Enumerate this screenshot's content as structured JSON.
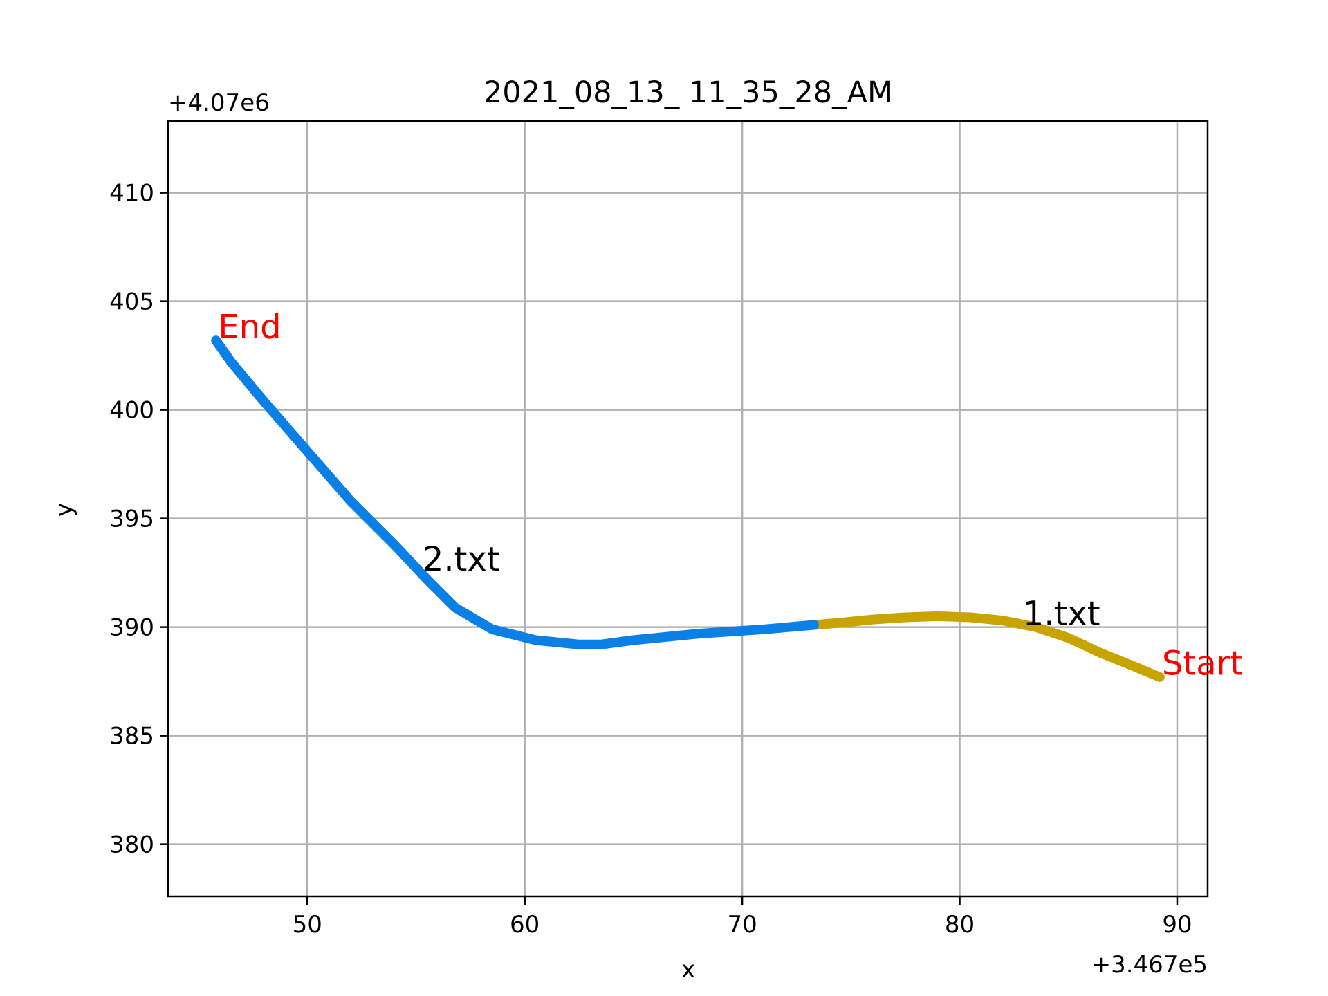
{
  "chart_data": {
    "type": "line",
    "title": "2021_08_13_ 11_35_28_AM",
    "xlabel": "x",
    "ylabel": "y",
    "x_offset_label": "+3.467e5",
    "y_offset_label": "+4.07e6",
    "xlim": [
      43.6,
      91.4
    ],
    "ylim": [
      377.6,
      413.3
    ],
    "xticks": [
      50,
      60,
      70,
      80,
      90
    ],
    "xtick_labels": [
      "50",
      "60",
      "70",
      "80",
      "90"
    ],
    "yticks": [
      380,
      385,
      390,
      395,
      400,
      405,
      410
    ],
    "ytick_labels": [
      "380",
      "385",
      "390",
      "395",
      "400",
      "405",
      "410"
    ],
    "grid": true,
    "series": [
      {
        "name": "1.txt",
        "color": "#c8a400",
        "points": [
          [
            89.2,
            387.7
          ],
          [
            88.0,
            388.2
          ],
          [
            86.5,
            388.8
          ],
          [
            85.0,
            389.5
          ],
          [
            83.5,
            390.0
          ],
          [
            82.0,
            390.3
          ],
          [
            80.5,
            390.45
          ],
          [
            79.0,
            390.5
          ],
          [
            77.5,
            390.45
          ],
          [
            76.0,
            390.35
          ],
          [
            74.5,
            390.2
          ],
          [
            73.3,
            390.1
          ]
        ]
      },
      {
        "name": "2.txt",
        "color": "#0a7fe6",
        "points": [
          [
            73.3,
            390.1
          ],
          [
            71.0,
            389.9
          ],
          [
            68.0,
            389.7
          ],
          [
            65.0,
            389.4
          ],
          [
            63.5,
            389.2
          ],
          [
            62.5,
            389.2
          ],
          [
            60.5,
            389.4
          ],
          [
            58.5,
            389.9
          ],
          [
            56.8,
            390.9
          ],
          [
            55.5,
            392.2
          ],
          [
            54.0,
            393.8
          ],
          [
            52.0,
            395.8
          ],
          [
            50.0,
            398.1
          ],
          [
            48.0,
            400.4
          ],
          [
            46.5,
            402.2
          ],
          [
            45.8,
            403.2
          ]
        ]
      }
    ],
    "annotations": [
      {
        "text": "Start",
        "x": 89.3,
        "y": 387.8,
        "color": "#ff0000"
      },
      {
        "text": "End",
        "x": 45.9,
        "y": 403.3,
        "color": "#ff0000"
      },
      {
        "text": "1.txt",
        "x": 82.9,
        "y": 390.1,
        "color": "#000000"
      },
      {
        "text": "2.txt",
        "x": 55.3,
        "y": 392.6,
        "color": "#000000"
      }
    ]
  }
}
